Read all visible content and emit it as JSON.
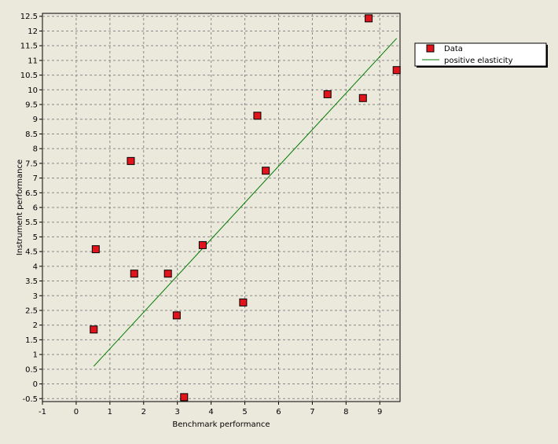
{
  "chart_data": {
    "type": "scatter",
    "title": "",
    "xlabel": "Benchmark performance",
    "ylabel": "Instrument performance",
    "xlim": [
      -1,
      9.6
    ],
    "ylim": [
      -0.6,
      12.6
    ],
    "xticks": [
      -1,
      0,
      1,
      2,
      3,
      4,
      5,
      6,
      7,
      8,
      9
    ],
    "yticks": [
      -0.5,
      0,
      0.5,
      1,
      1.5,
      2,
      2.5,
      3,
      3.5,
      4,
      4.5,
      5,
      5.5,
      6,
      6.5,
      7,
      7.5,
      8,
      8.5,
      9,
      9.5,
      10,
      10.5,
      11,
      11.5,
      12,
      12.5
    ],
    "grid": true,
    "legend_position": "top-right",
    "series": [
      {
        "name": "Data",
        "kind": "scatter",
        "color": "#e0141a",
        "marker": "square",
        "points": [
          {
            "x": 0.52,
            "y": 1.85
          },
          {
            "x": 0.58,
            "y": 4.58
          },
          {
            "x": 1.62,
            "y": 7.58
          },
          {
            "x": 1.72,
            "y": 3.75
          },
          {
            "x": 2.72,
            "y": 3.75
          },
          {
            "x": 2.98,
            "y": 2.33
          },
          {
            "x": 3.2,
            "y": -0.45
          },
          {
            "x": 3.75,
            "y": 4.72
          },
          {
            "x": 4.95,
            "y": 2.77
          },
          {
            "x": 5.37,
            "y": 9.12
          },
          {
            "x": 5.62,
            "y": 7.25
          },
          {
            "x": 7.45,
            "y": 9.85
          },
          {
            "x": 8.5,
            "y": 9.72
          },
          {
            "x": 8.67,
            "y": 12.43
          },
          {
            "x": 9.5,
            "y": 10.67
          }
        ]
      },
      {
        "name": "positive elasticity",
        "kind": "line",
        "color": "#007a00",
        "points": [
          {
            "x": 0.52,
            "y": 0.6
          },
          {
            "x": 9.5,
            "y": 11.75
          }
        ]
      }
    ]
  }
}
